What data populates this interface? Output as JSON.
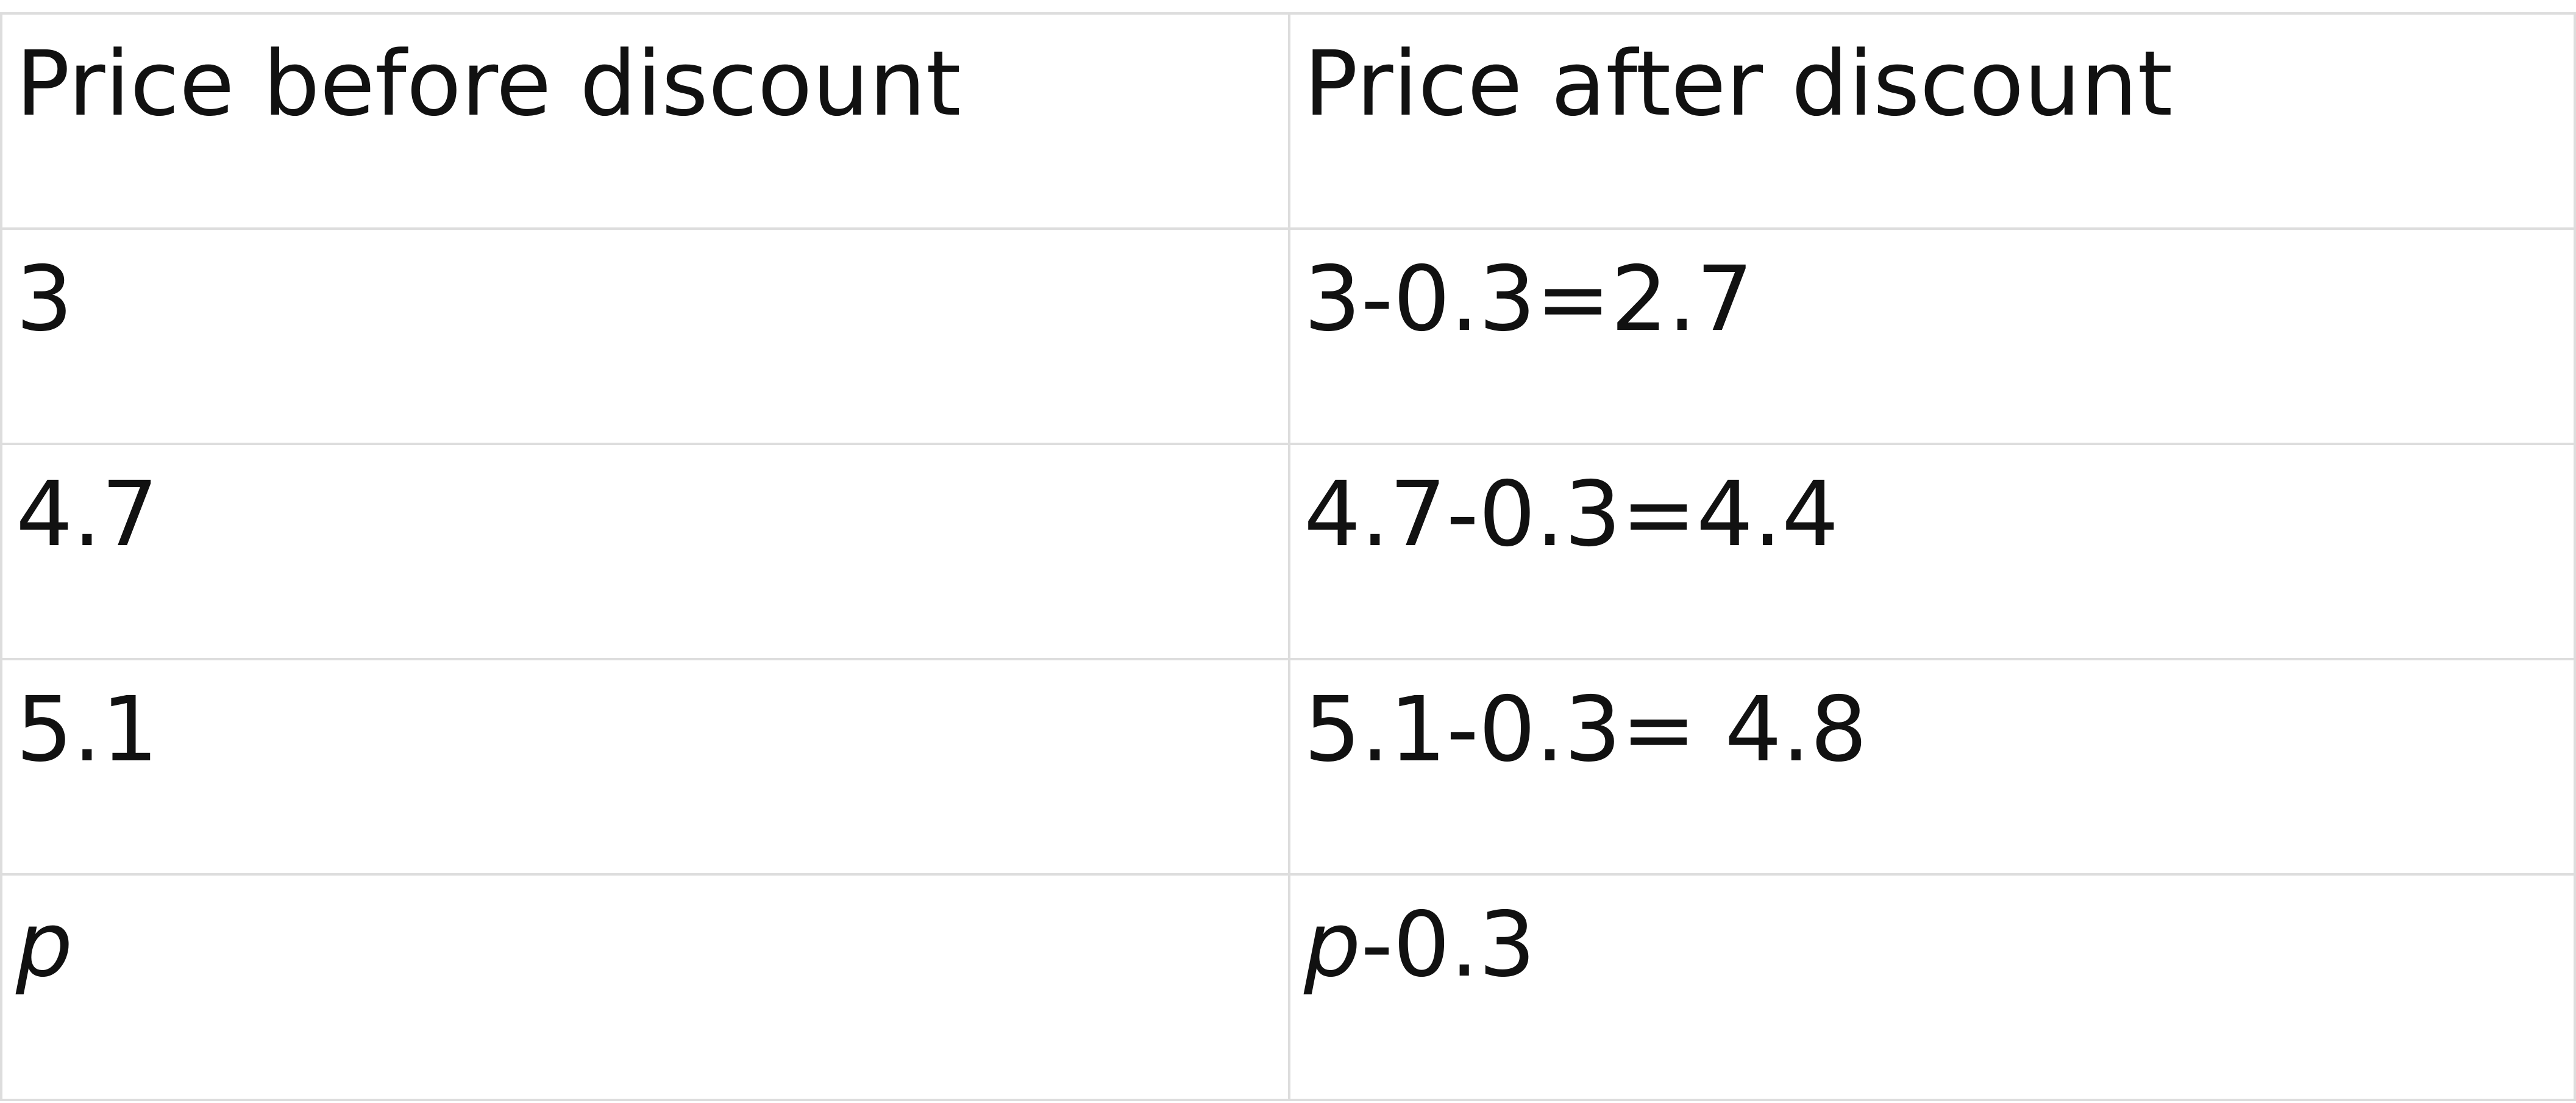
{
  "table": {
    "headers": [
      "Price before discount",
      "Price after discount"
    ],
    "rows": [
      {
        "before": "3",
        "after": "3-0.3=2.7"
      },
      {
        "before": "4.7",
        "after": "4.7-0.3=4.4"
      },
      {
        "before": "5.1",
        "after": "5.1-0.3= 4.8"
      }
    ],
    "variable_row": {
      "before_var": "p",
      "after_var": "p",
      "after_rest": "-0.3"
    }
  }
}
